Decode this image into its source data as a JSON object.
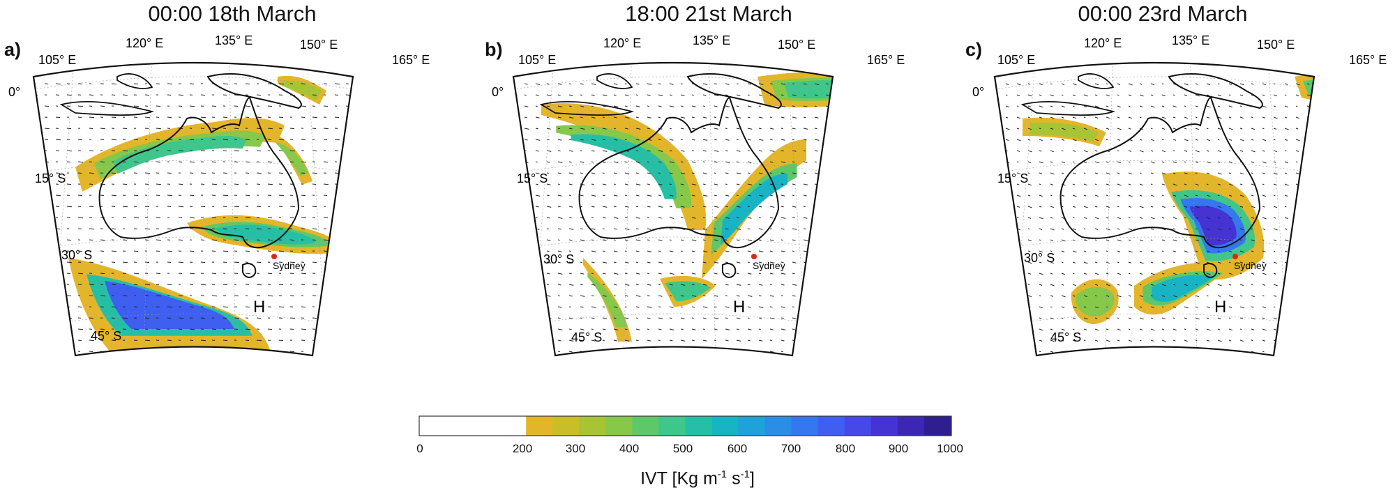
{
  "panels": [
    {
      "id": "a",
      "letter": "a)",
      "title": "00:00 18th March",
      "lon_labels": [
        "105° E",
        "120° E",
        "135° E",
        "150° E",
        "165° E"
      ],
      "lat_labels": [
        "0°",
        "15° S",
        "30° S",
        "45° S"
      ],
      "city": "Sydney",
      "pressure_symbol": "H"
    },
    {
      "id": "b",
      "letter": "b)",
      "title": "18:00 21st March",
      "lon_labels": [
        "105° E",
        "120° E",
        "135° E",
        "150° E",
        "165° E"
      ],
      "lat_labels": [
        "0°",
        "15° S",
        "30° S",
        "45° S"
      ],
      "city": "Sydney",
      "pressure_symbol": "H"
    },
    {
      "id": "c",
      "letter": "c)",
      "title": "00:00 23rd March",
      "lon_labels": [
        "105° E",
        "120° E",
        "135° E",
        "150° E",
        "165° E"
      ],
      "lat_labels": [
        "0°",
        "15° S",
        "30° S",
        "45° S"
      ],
      "city": "Sydney",
      "pressure_symbol": "H"
    }
  ],
  "colorbar": {
    "tick_labels": [
      "0",
      "200",
      "300",
      "400",
      "500",
      "600",
      "700",
      "800",
      "900",
      "1000"
    ],
    "label_main": "IVT [Kg m",
    "label_sup1": "-1",
    "label_mid": " s",
    "label_sup2": "-1",
    "label_end": "]",
    "range": [
      0,
      1000
    ],
    "threshold": 200,
    "step": 50,
    "colors": [
      "#e3b52b",
      "#c9bd2a",
      "#a7c435",
      "#85c84a",
      "#5ec868",
      "#3fc68a",
      "#26bfa6",
      "#18b3c4",
      "#1ea2d8",
      "#2a8de6",
      "#3577ee",
      "#3f5ff0",
      "#4648e8",
      "#4533d4",
      "#3c27b4",
      "#2f1e90"
    ]
  }
}
